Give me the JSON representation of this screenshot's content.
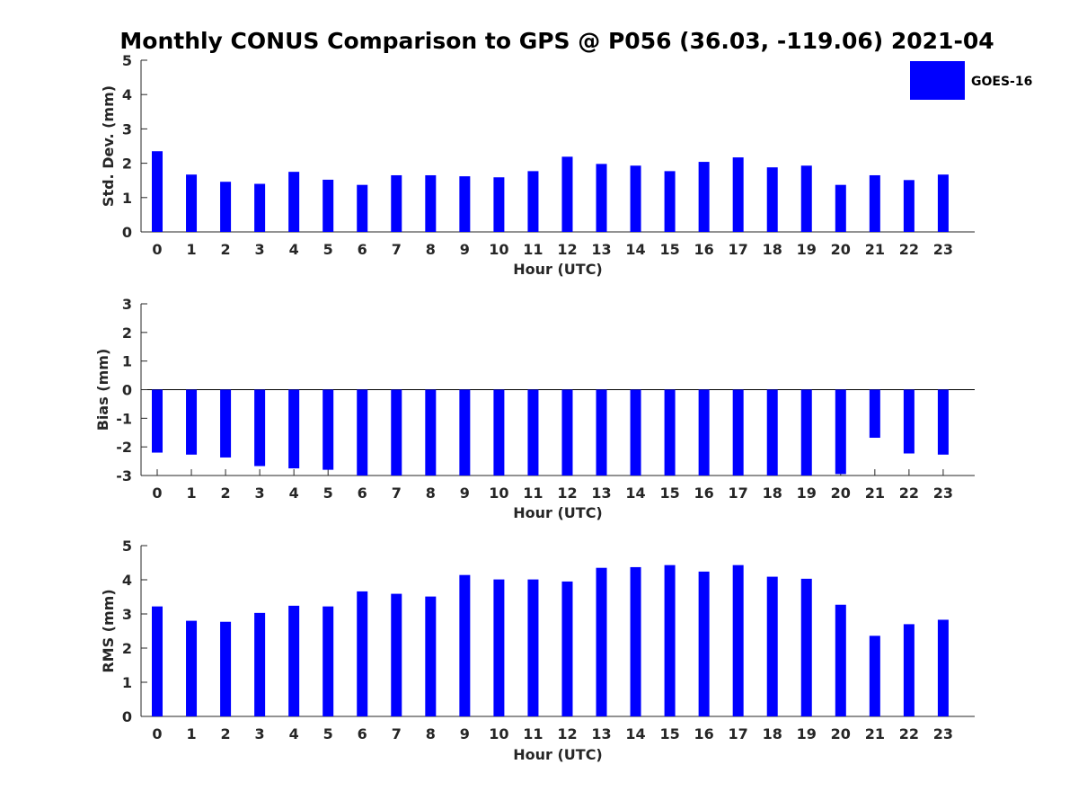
{
  "figure": {
    "title": "Monthly CONUS Comparison to GPS @ P056 (36.03, -119.06) 2021-04"
  },
  "legend": {
    "label": "GOES-16",
    "placement": "top-right",
    "color": "#0000ff"
  },
  "chart_data": [
    {
      "type": "bar",
      "name": "std-dev",
      "xlabel": "Hour (UTC)",
      "ylabel": "Std. Dev. (mm)",
      "ylim": [
        0,
        5
      ],
      "yticks": [
        0,
        1,
        2,
        3,
        4,
        5
      ],
      "categories": [
        "0",
        "1",
        "2",
        "3",
        "4",
        "5",
        "6",
        "7",
        "8",
        "9",
        "10",
        "11",
        "12",
        "13",
        "14",
        "15",
        "16",
        "17",
        "18",
        "19",
        "20",
        "21",
        "22",
        "23"
      ],
      "series": [
        {
          "name": "GOES-16",
          "color": "#0000ff",
          "values": [
            2.35,
            1.67,
            1.46,
            1.4,
            1.75,
            1.52,
            1.37,
            1.65,
            1.65,
            1.62,
            1.59,
            1.77,
            2.19,
            1.98,
            1.93,
            1.77,
            2.04,
            2.17,
            1.88,
            1.93,
            1.37,
            1.65,
            1.51,
            1.67
          ]
        }
      ],
      "grid": false
    },
    {
      "type": "bar",
      "name": "bias",
      "xlabel": "Hour (UTC)",
      "ylabel": "Bias (mm)",
      "ylim": [
        -3,
        3
      ],
      "yticks": [
        -3,
        -2,
        -1,
        0,
        1,
        2,
        3
      ],
      "categories": [
        "0",
        "1",
        "2",
        "3",
        "4",
        "5",
        "6",
        "7",
        "8",
        "9",
        "10",
        "11",
        "12",
        "13",
        "14",
        "15",
        "16",
        "17",
        "18",
        "19",
        "20",
        "21",
        "22",
        "23"
      ],
      "series": [
        {
          "name": "GOES-16",
          "color": "#0000ff",
          "values": [
            -2.2,
            -2.27,
            -2.37,
            -2.67,
            -2.75,
            -2.8,
            -3.0,
            -3.0,
            -3.0,
            -3.0,
            -3.0,
            -3.0,
            -3.0,
            -3.0,
            -3.0,
            -3.0,
            -3.0,
            -3.0,
            -3.0,
            -3.0,
            -2.95,
            -1.68,
            -2.23,
            -2.27
          ]
        }
      ],
      "grid": false
    },
    {
      "type": "bar",
      "name": "rms",
      "xlabel": "Hour (UTC)",
      "ylabel": "RMS (mm)",
      "ylim": [
        0,
        5
      ],
      "yticks": [
        0,
        1,
        2,
        3,
        4,
        5
      ],
      "categories": [
        "0",
        "1",
        "2",
        "3",
        "4",
        "5",
        "6",
        "7",
        "8",
        "9",
        "10",
        "11",
        "12",
        "13",
        "14",
        "15",
        "16",
        "17",
        "18",
        "19",
        "20",
        "21",
        "22",
        "23"
      ],
      "series": [
        {
          "name": "GOES-16",
          "color": "#0000ff",
          "values": [
            3.22,
            2.8,
            2.77,
            3.03,
            3.24,
            3.22,
            3.66,
            3.59,
            3.51,
            4.14,
            4.01,
            4.01,
            3.95,
            4.35,
            4.37,
            4.43,
            4.24,
            4.43,
            4.09,
            4.03,
            3.27,
            2.36,
            2.7,
            2.83
          ]
        }
      ],
      "grid": false
    }
  ]
}
